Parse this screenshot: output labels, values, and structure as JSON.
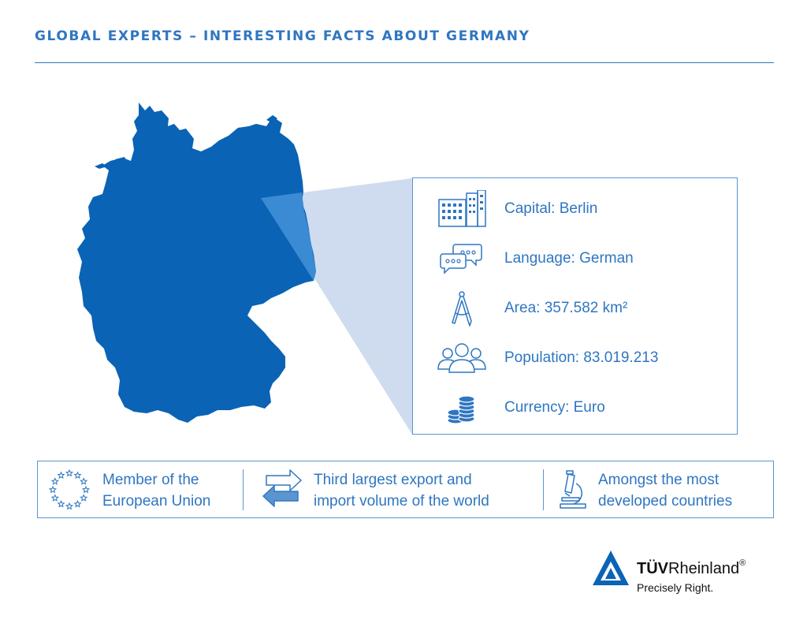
{
  "header": {
    "title": "GLOBAL EXPERTS – INTERESTING FACTS ABOUT GERMANY"
  },
  "colors": {
    "primary": "#2f76c1",
    "map_fill": "#0a63b5",
    "highlight": "#3a8bd3",
    "callout": "#cfdcef"
  },
  "facts": [
    {
      "icon": "office-building-icon",
      "label": "Capital: Berlin"
    },
    {
      "icon": "speech-bubbles-icon",
      "label": "Language: German"
    },
    {
      "icon": "drafting-compass-icon",
      "label": "Area: 357.582 km²"
    },
    {
      "icon": "people-group-icon",
      "label": "Population: 83.019.213"
    },
    {
      "icon": "coin-stack-icon",
      "label": "Currency: Euro"
    }
  ],
  "highlights": [
    {
      "icon": "eu-stars-icon",
      "line1": "Member of the",
      "line2": "European Union"
    },
    {
      "icon": "exchange-arrows-icon",
      "line1": "Third largest export and",
      "line2": "import volume of the world"
    },
    {
      "icon": "microscope-icon",
      "line1": "Amongst the most",
      "line2": "developed countries"
    }
  ],
  "logo": {
    "brand_bold": "TÜV",
    "brand_regular": "Rheinland",
    "registered": "®",
    "tagline": "Precisely Right."
  }
}
